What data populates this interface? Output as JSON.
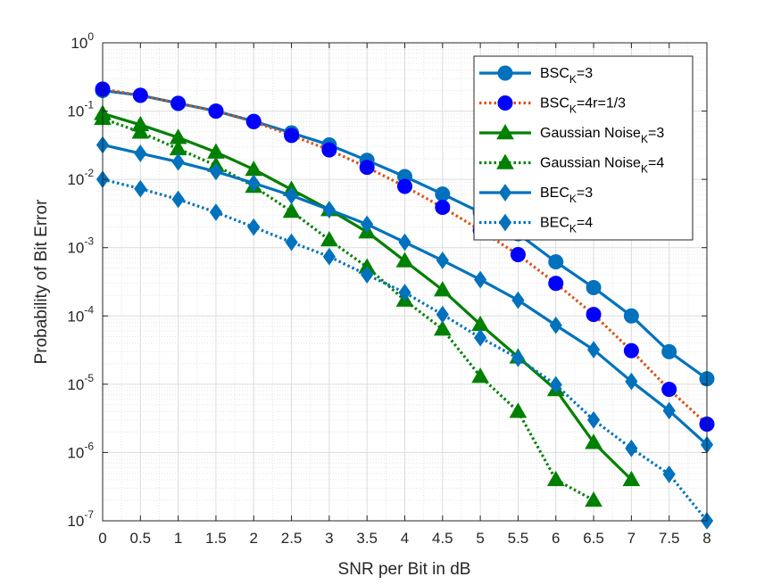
{
  "chart_data": {
    "type": "line",
    "title": "",
    "xlabel": "SNR per Bit in dB",
    "ylabel": "Probability of Bit Error",
    "xlim": [
      0,
      8
    ],
    "ylim": [
      1e-07,
      1
    ],
    "yscale": "log",
    "grid": true,
    "minor_grid": true,
    "legend_position": "top-right",
    "x_ticks": [
      "0",
      "0.5",
      "1",
      "1.5",
      "2",
      "2.5",
      "3",
      "3.5",
      "4",
      "4.5",
      "5",
      "5.5",
      "6",
      "6.5",
      "7",
      "7.5",
      "8"
    ],
    "y_ticks": [
      {
        "base": "10",
        "exp": "0"
      },
      {
        "base": "10",
        "exp": "-1"
      },
      {
        "base": "10",
        "exp": "-2"
      },
      {
        "base": "10",
        "exp": "-3"
      },
      {
        "base": "10",
        "exp": "-4"
      },
      {
        "base": "10",
        "exp": "-5"
      },
      {
        "base": "10",
        "exp": "-6"
      },
      {
        "base": "10",
        "exp": "-7"
      }
    ],
    "series": [
      {
        "name": "BSC_K=3",
        "legend": {
          "main": "BSC",
          "sub": "K",
          "rest": "=3"
        },
        "color": "#0072bd",
        "linestyle": "solid",
        "marker": "circle",
        "x": [
          0,
          0.5,
          1,
          1.5,
          2,
          2.5,
          3,
          3.5,
          4,
          4.5,
          5,
          5.5,
          6,
          6.5,
          7,
          7.5,
          8
        ],
        "y": [
          0.2,
          0.17,
          0.13,
          0.1,
          0.071,
          0.048,
          0.032,
          0.019,
          0.011,
          0.0061,
          0.0033,
          0.0016,
          0.00062,
          0.00026,
          0.0001,
          3e-05,
          1.2e-05
        ]
      },
      {
        "name": "BSC_K=4r=1/3",
        "legend": {
          "main": "BSC",
          "sub": "K",
          "rest": "=4r=1/3"
        },
        "color": "#d95319",
        "marker_color": "#0000ff",
        "linestyle": "dotted",
        "marker": "circle",
        "x": [
          0,
          0.5,
          1,
          1.5,
          2,
          2.5,
          3,
          3.5,
          4,
          4.5,
          5,
          5.5,
          6,
          6.5,
          7,
          7.5,
          8
        ],
        "y": [
          0.21,
          0.17,
          0.13,
          0.1,
          0.07,
          0.044,
          0.027,
          0.015,
          0.0079,
          0.0039,
          0.0018,
          0.00079,
          0.0003,
          0.000105,
          3.1e-05,
          8.4e-06,
          2.6e-06
        ]
      },
      {
        "name": "Gaussian Noise_K=3",
        "legend": {
          "main": "Gaussian Noise",
          "sub": "K",
          "rest": "=3"
        },
        "color": "#008000",
        "linestyle": "solid",
        "marker": "triangle",
        "x": [
          0,
          0.5,
          1,
          1.5,
          2,
          2.5,
          3,
          3.5,
          4,
          4.5,
          5,
          5.5,
          6,
          6.5,
          7
        ],
        "y": [
          0.092,
          0.063,
          0.041,
          0.025,
          0.014,
          0.0071,
          0.0036,
          0.0017,
          0.00064,
          0.00024,
          7.5e-05,
          2.5e-05,
          8.3e-06,
          1.4e-06,
          4e-07
        ]
      },
      {
        "name": "Gaussian Noise_K=4",
        "legend": {
          "main": "Gaussian Noise",
          "sub": "K",
          "rest": "=4"
        },
        "color": "#008000",
        "linestyle": "dotted",
        "marker": "triangle",
        "x": [
          0,
          0.5,
          1,
          1.5,
          2,
          2.5,
          3,
          3.5,
          4,
          4.5,
          5,
          5.5,
          6,
          6.5
        ],
        "y": [
          0.078,
          0.049,
          0.028,
          0.016,
          0.0079,
          0.0034,
          0.0013,
          0.00052,
          0.00017,
          6.4e-05,
          1.3e-05,
          4e-06,
          4e-07,
          2e-07
        ]
      },
      {
        "name": "BEC_K=3",
        "legend": {
          "main": "BEC",
          "sub": "K",
          "rest": "=3"
        },
        "color": "#0072bd",
        "linestyle": "solid",
        "marker": "diamond",
        "x": [
          0,
          0.5,
          1,
          1.5,
          2,
          2.5,
          3,
          3.5,
          4,
          4.5,
          5,
          5.5,
          6,
          6.5,
          7,
          7.5,
          8
        ],
        "y": [
          0.032,
          0.024,
          0.018,
          0.013,
          0.0088,
          0.0058,
          0.0036,
          0.0022,
          0.0012,
          0.00065,
          0.00034,
          0.00017,
          7.3e-05,
          3.2e-05,
          1.1e-05,
          4.1e-06,
          1.3e-06
        ]
      },
      {
        "name": "BEC_K=4",
        "legend": {
          "main": "BEC",
          "sub": "K",
          "rest": "=4"
        },
        "color": "#0072bd",
        "linestyle": "dotted",
        "marker": "diamond",
        "x": [
          0,
          0.5,
          1,
          1.5,
          2,
          2.5,
          3,
          3.5,
          4,
          4.5,
          5,
          5.5,
          6,
          6.5,
          7,
          7.5,
          8
        ],
        "y": [
          0.01,
          0.0073,
          0.0051,
          0.0033,
          0.002,
          0.0012,
          0.00074,
          0.0004,
          0.00022,
          0.000105,
          4.8e-05,
          2.4e-05,
          9.8e-06,
          3e-06,
          1.15e-06,
          4.8e-07,
          1e-07
        ]
      }
    ]
  }
}
